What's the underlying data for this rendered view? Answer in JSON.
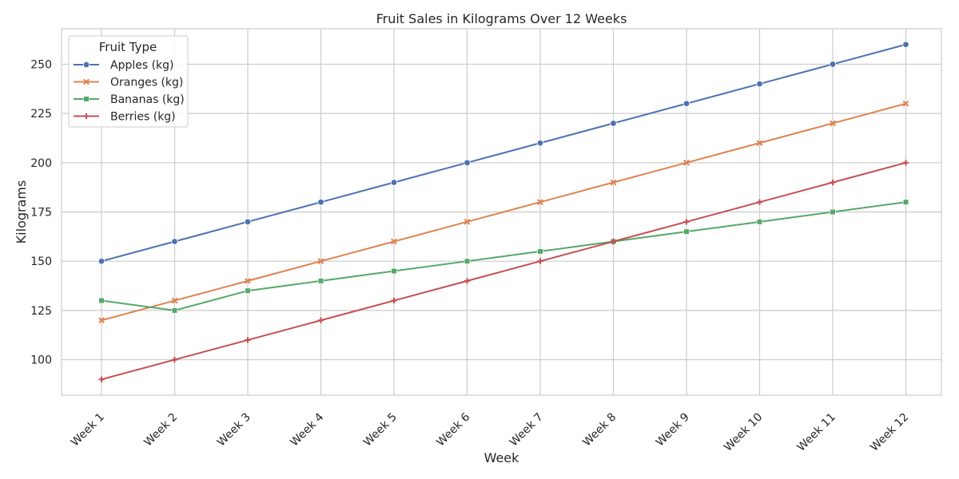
{
  "chart_data": {
    "type": "line",
    "title": "Fruit Sales in Kilograms Over 12 Weeks",
    "xlabel": "Week",
    "ylabel": "Kilograms",
    "categories": [
      "Week 1",
      "Week 2",
      "Week 3",
      "Week 4",
      "Week 5",
      "Week 6",
      "Week 7",
      "Week 8",
      "Week 9",
      "Week 10",
      "Week 11",
      "Week 12"
    ],
    "ylim": [
      82,
      268
    ],
    "yticks": [
      100,
      125,
      150,
      175,
      200,
      225,
      250
    ],
    "grid": true,
    "legend": {
      "title": "Fruit Type",
      "position": "top-left"
    },
    "series": [
      {
        "name": "Apples (kg)",
        "color": "#4c72b0",
        "marker": "circle",
        "values": [
          150,
          160,
          170,
          180,
          190,
          200,
          210,
          220,
          230,
          240,
          250,
          260
        ]
      },
      {
        "name": "Oranges (kg)",
        "color": "#dd8452",
        "marker": "x",
        "values": [
          120,
          130,
          140,
          150,
          160,
          170,
          180,
          190,
          200,
          210,
          220,
          230
        ]
      },
      {
        "name": "Bananas (kg)",
        "color": "#55a868",
        "marker": "square",
        "values": [
          130,
          125,
          135,
          140,
          145,
          150,
          155,
          160,
          165,
          170,
          175,
          180
        ]
      },
      {
        "name": "Berries (kg)",
        "color": "#c44e52",
        "marker": "plus",
        "values": [
          90,
          100,
          110,
          120,
          130,
          140,
          150,
          160,
          170,
          180,
          190,
          200
        ]
      }
    ]
  }
}
